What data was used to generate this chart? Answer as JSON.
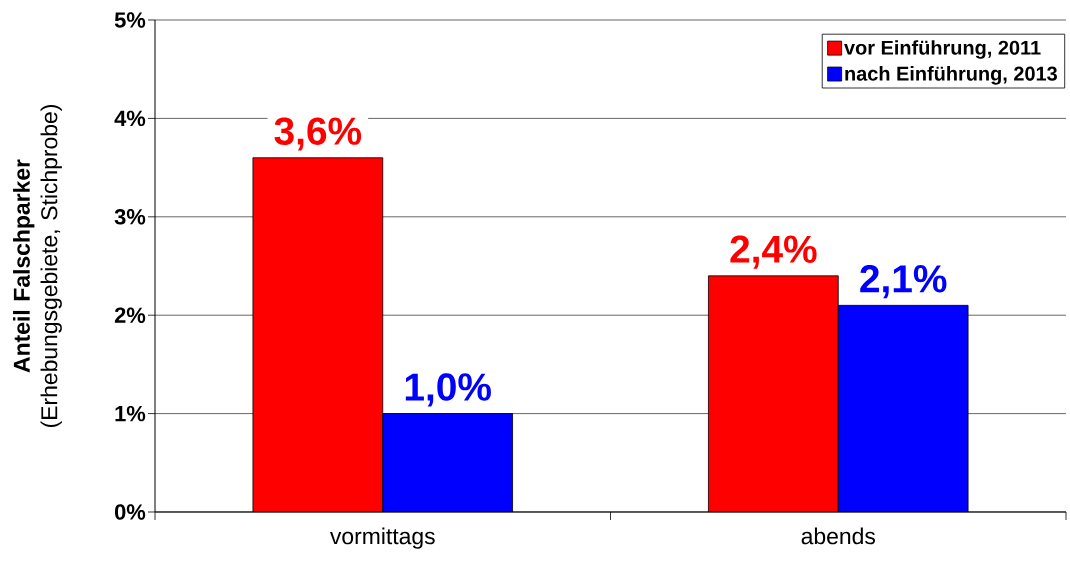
{
  "chart_data": {
    "type": "bar",
    "ylabel": "**Anteil Falschparker** (Erhebungsgebiete, Stichprobe)",
    "categories": [
      "vormittags",
      "abends"
    ],
    "series": [
      {
        "name": "vor Einführung, 2011",
        "color": "#ff0000",
        "values": [
          3.6,
          2.4
        ],
        "value_labels": [
          "3,6%",
          "2,4%"
        ]
      },
      {
        "name": "nach Einführung, 2013",
        "color": "#0000ff",
        "values": [
          1.0,
          2.1
        ],
        "value_labels": [
          "1,0%",
          "2,1%"
        ]
      }
    ],
    "ylim": [
      0,
      5
    ],
    "yticks": [
      {
        "value": 0,
        "label": "0%"
      },
      {
        "value": 1,
        "label": "1%"
      },
      {
        "value": 2,
        "label": "2%"
      },
      {
        "value": 3,
        "label": "3%"
      },
      {
        "value": 4,
        "label": "4%"
      },
      {
        "value": 5,
        "label": "5%"
      }
    ],
    "grid": "y",
    "legend": "top right"
  }
}
